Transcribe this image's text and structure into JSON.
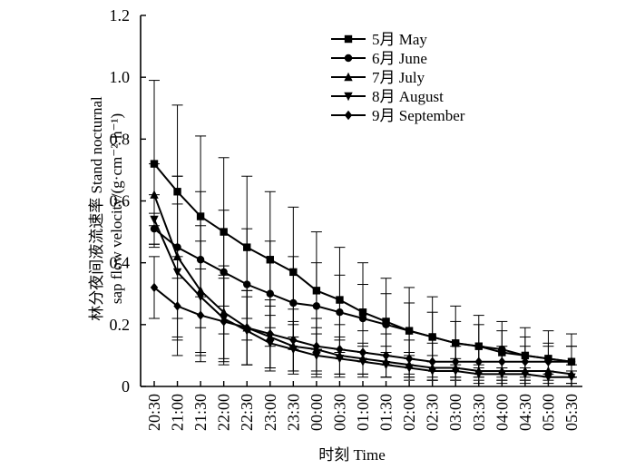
{
  "chart_data": {
    "type": "line",
    "xlabel": "时刻 Time",
    "ylabel_line1": "林分夜间液流速率 Stand nocturnal",
    "ylabel_line2": "sap flow velocity/(g·cm⁻²·h⁻¹)",
    "ylim": [
      0,
      1.2
    ],
    "yticks": [
      "0",
      "0.2",
      "0.4",
      "0.6",
      "0.8",
      "1.0",
      "1.2"
    ],
    "categories": [
      "20:30",
      "21:00",
      "21:30",
      "22:00",
      "22:30",
      "23:00",
      "23:30",
      "00:00",
      "00:30",
      "01:00",
      "01:30",
      "02:00",
      "02:30",
      "03:00",
      "03:30",
      "04:00",
      "04:30",
      "05:00",
      "05:30"
    ],
    "legend_position": "top-right",
    "series": [
      {
        "name": "5月 May",
        "marker": "square",
        "values": [
          0.72,
          0.63,
          0.55,
          0.5,
          0.45,
          0.41,
          0.37,
          0.31,
          0.28,
          0.24,
          0.21,
          0.18,
          0.16,
          0.14,
          0.13,
          0.11,
          0.1,
          0.09,
          0.08
        ],
        "errors": [
          0.27,
          0.28,
          0.26,
          0.24,
          0.23,
          0.22,
          0.21,
          0.19,
          0.17,
          0.16,
          0.14,
          0.14,
          0.13,
          0.12,
          0.1,
          0.1,
          0.09,
          0.09,
          0.09
        ]
      },
      {
        "name": "6月 June",
        "marker": "circle",
        "values": [
          0.51,
          0.45,
          0.41,
          0.37,
          0.33,
          0.3,
          0.27,
          0.26,
          0.24,
          0.22,
          0.2,
          0.18,
          0.16,
          0.14,
          0.13,
          0.12,
          0.1,
          0.09,
          0.08
        ],
        "errors": [
          0.05,
          0.23,
          0.22,
          0.2,
          0.18,
          0.17,
          0.15,
          0.14,
          0.12,
          0.11,
          0.1,
          0.09,
          0.08,
          0.07,
          0.07,
          0.06,
          0.06,
          0.05,
          0.05
        ]
      },
      {
        "name": "7月 July",
        "marker": "triangle-up",
        "values": [
          0.62,
          0.42,
          0.31,
          0.24,
          0.19,
          0.16,
          0.13,
          0.12,
          0.1,
          0.09,
          0.08,
          0.07,
          0.06,
          0.06,
          0.05,
          0.05,
          0.05,
          0.05,
          0.04
        ],
        "errors": [
          0.1,
          0.26,
          0.21,
          0.15,
          0.12,
          0.1,
          0.08,
          0.07,
          0.06,
          0.05,
          0.05,
          0.04,
          0.04,
          0.03,
          0.03,
          0.03,
          0.03,
          0.03,
          0.03
        ]
      },
      {
        "name": "8月 August",
        "marker": "triangle-down",
        "values": [
          0.54,
          0.37,
          0.29,
          0.22,
          0.18,
          0.14,
          0.12,
          0.1,
          0.09,
          0.08,
          0.07,
          0.06,
          0.05,
          0.05,
          0.04,
          0.04,
          0.04,
          0.03,
          0.03
        ],
        "errors": [
          0.08,
          0.22,
          0.18,
          0.14,
          0.11,
          0.09,
          0.08,
          0.07,
          0.06,
          0.05,
          0.04,
          0.04,
          0.03,
          0.03,
          0.03,
          0.02,
          0.02,
          0.02,
          0.02
        ]
      },
      {
        "name": "9月 September",
        "marker": "diamond",
        "values": [
          0.32,
          0.26,
          0.23,
          0.21,
          0.19,
          0.17,
          0.15,
          0.13,
          0.12,
          0.11,
          0.1,
          0.09,
          0.08,
          0.08,
          0.08,
          0.08,
          0.08,
          0.08,
          0.08
        ],
        "errors": [
          0.1,
          0.16,
          0.15,
          0.14,
          0.12,
          0.11,
          0.1,
          0.09,
          0.08,
          0.07,
          0.07,
          0.06,
          0.06,
          0.05,
          0.05,
          0.05,
          0.05,
          0.05,
          0.05
        ]
      }
    ]
  }
}
